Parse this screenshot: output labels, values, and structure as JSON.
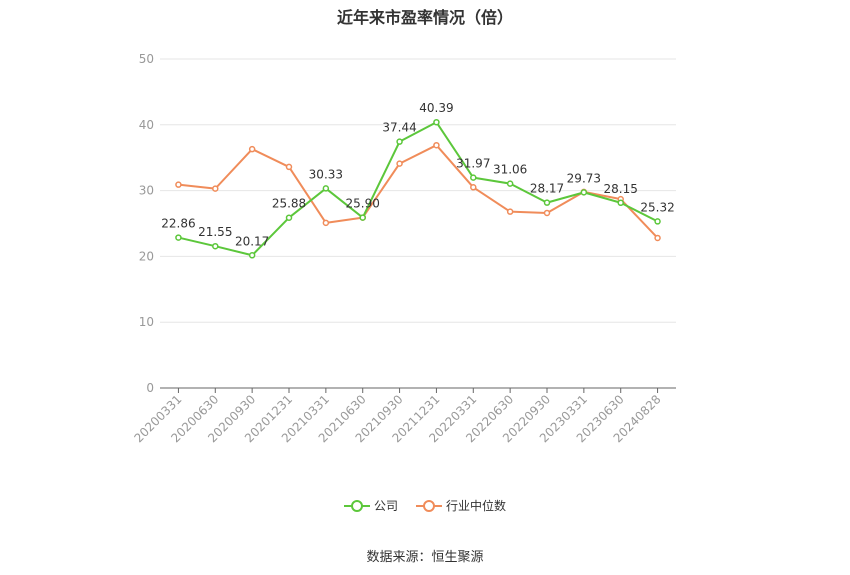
{
  "title": "近年来市盈率情况（倍）",
  "source": "数据来源：恒生聚源",
  "chart_data": {
    "type": "line",
    "categories": [
      "20200331",
      "20200630",
      "20200930",
      "20201231",
      "20210331",
      "20210630",
      "20210930",
      "20211231",
      "20220331",
      "20220630",
      "20220930",
      "20230331",
      "20230630",
      "20240828"
    ],
    "ylim": [
      0,
      50
    ],
    "yticks": [
      0,
      10,
      20,
      30,
      40,
      50
    ],
    "grid": true,
    "legend_position": "bottom",
    "series": [
      {
        "name": "公司",
        "color": "#5cc73b",
        "show_labels": true,
        "labels": [
          "22.86",
          "21.55",
          "20.17",
          "25.88",
          "30.33",
          "25.90",
          "37.44",
          "40.39",
          "31.97",
          "31.06",
          "28.17",
          "29.73",
          "28.15",
          "25.32"
        ],
        "values": [
          22.86,
          21.55,
          20.17,
          25.88,
          30.33,
          25.9,
          37.44,
          40.39,
          31.97,
          31.06,
          28.17,
          29.73,
          28.15,
          25.32
        ]
      },
      {
        "name": "行业中位数",
        "color": "#f08c5a",
        "show_labels": false,
        "values": [
          30.9,
          30.3,
          36.3,
          33.6,
          25.1,
          25.9,
          34.1,
          36.9,
          30.5,
          26.8,
          26.6,
          29.8,
          28.7,
          22.8
        ]
      }
    ]
  }
}
